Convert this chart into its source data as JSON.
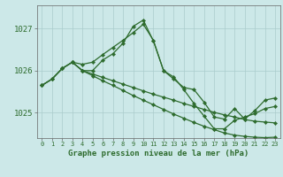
{
  "title": "Graphe pression niveau de la mer (hPa)",
  "background_color": "#cce8e8",
  "grid_color": "#aacccc",
  "line_color": "#2d6b2d",
  "marker_color": "#2d6b2d",
  "xlim": [
    -0.5,
    23.5
  ],
  "ylim": [
    1024.4,
    1027.55
  ],
  "yticks": [
    1025,
    1026,
    1027
  ],
  "xticks": [
    0,
    1,
    2,
    3,
    4,
    5,
    6,
    7,
    8,
    9,
    10,
    11,
    12,
    13,
    14,
    15,
    16,
    17,
    18,
    19,
    20,
    21,
    22,
    23
  ],
  "series": [
    {
      "x": [
        0,
        1,
        2,
        3,
        4,
        5,
        6,
        7,
        8,
        9,
        10,
        11,
        12,
        13,
        14,
        15,
        16,
        17,
        18,
        19,
        20,
        21,
        22,
        23
      ],
      "y": [
        1025.65,
        1025.8,
        1026.05,
        1026.2,
        1026.0,
        1026.0,
        1026.25,
        1026.4,
        1026.65,
        1027.05,
        1027.2,
        1026.7,
        1026.0,
        1025.8,
        1025.6,
        1025.55,
        1025.25,
        1024.9,
        1024.85,
        1025.1,
        1024.85,
        1025.05,
        1025.3,
        1025.35
      ]
    },
    {
      "x": [
        0,
        1,
        2,
        3,
        4,
        5,
        6,
        7,
        8,
        9,
        10,
        11,
        12,
        13,
        14,
        15,
        16,
        17,
        18,
        19,
        20,
        21,
        22,
        23
      ],
      "y": [
        1025.65,
        1025.8,
        1026.05,
        1026.2,
        1026.0,
        1025.92,
        1025.84,
        1025.76,
        1025.68,
        1025.6,
        1025.52,
        1025.44,
        1025.37,
        1025.3,
        1025.22,
        1025.15,
        1025.08,
        1025.01,
        1024.95,
        1024.9,
        1024.84,
        1024.8,
        1024.78,
        1024.76
      ]
    },
    {
      "x": [
        0,
        1,
        2,
        3,
        4,
        5,
        6,
        7,
        8,
        9,
        10,
        11,
        12,
        13,
        14,
        15,
        16,
        17,
        18,
        19,
        20,
        21,
        22,
        23
      ],
      "y": [
        1025.65,
        1025.8,
        1026.05,
        1026.2,
        1026.0,
        1025.88,
        1025.76,
        1025.65,
        1025.53,
        1025.41,
        1025.3,
        1025.19,
        1025.08,
        1024.97,
        1024.87,
        1024.77,
        1024.68,
        1024.6,
        1024.52,
        1024.47,
        1024.44,
        1024.42,
        1024.41,
        1024.42
      ]
    },
    {
      "x": [
        3,
        4,
        5,
        6,
        7,
        8,
        9,
        10,
        11,
        12,
        13,
        14,
        15,
        16,
        17,
        18,
        19,
        20,
        21,
        22,
        23
      ],
      "y": [
        1026.2,
        1026.15,
        1026.2,
        1026.38,
        1026.55,
        1026.72,
        1026.9,
        1027.1,
        1026.72,
        1026.0,
        1025.85,
        1025.55,
        1025.22,
        1024.92,
        1024.62,
        1024.62,
        1024.82,
        1024.9,
        1024.98,
        1025.1,
        1025.15
      ]
    }
  ]
}
